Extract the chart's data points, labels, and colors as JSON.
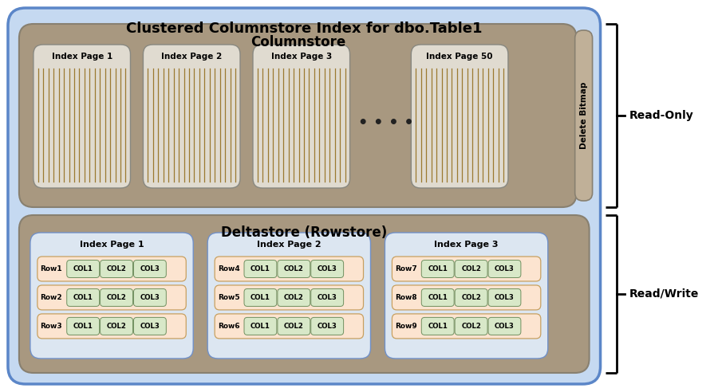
{
  "title": "Clustered Columnstore Index for dbo.Table1",
  "bg_outer": "#c5d9f1",
  "bg_columnstore": "#a89880",
  "bg_deltastore": "#a89880",
  "bg_index_page_cs": "#ddd8cc",
  "bg_index_page_ds": "#dce6f1",
  "bg_row_cell": "#fce4d0",
  "bg_col_cell": "#d8e8c8",
  "delete_bitmap_color": "#c0b098",
  "columnstore_label": "Columnstore",
  "deltastore_label": "Deltastore (Rowstore)",
  "cs_pages": [
    "Index Page 1",
    "Index Page 2",
    "Index Page 3",
    "Index Page 50"
  ],
  "ds_pages": [
    "Index Page 1",
    "Index Page 2",
    "Index Page 3"
  ],
  "ds_rows": [
    [
      "Row1",
      "Row2",
      "Row3"
    ],
    [
      "Row4",
      "Row5",
      "Row6"
    ],
    [
      "Row7",
      "Row8",
      "Row9"
    ]
  ],
  "col_labels": [
    "COL1",
    "COL2",
    "COL3"
  ],
  "read_only_label": "Read-Only",
  "read_write_label": "Read/Write",
  "delete_bitmap_label": "Delete Bitmap",
  "line_color": "#8b7040",
  "cs_page_line_color": "#9b7a30"
}
